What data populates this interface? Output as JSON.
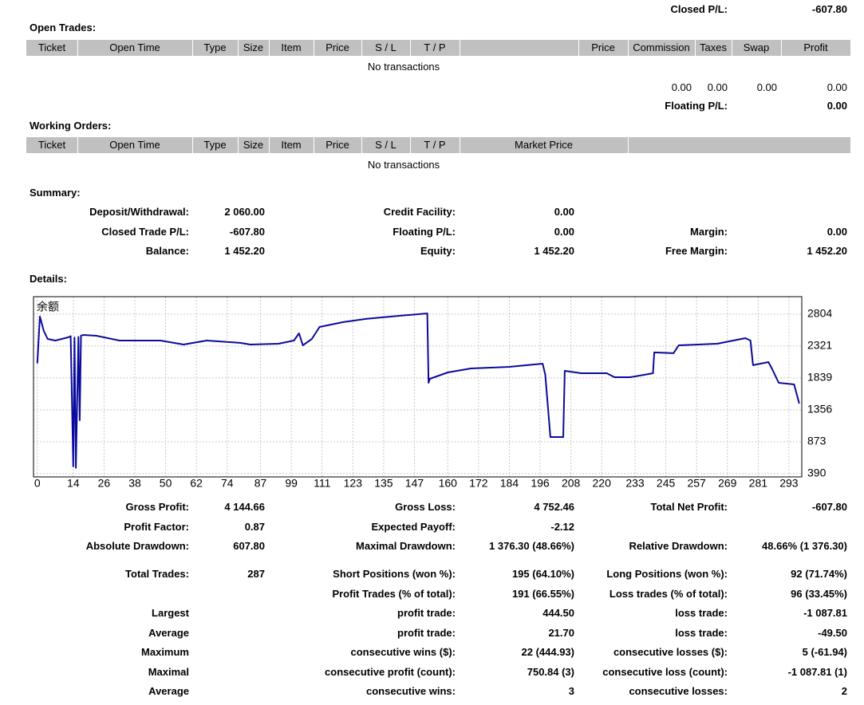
{
  "top": {
    "label": "Closed P/L:",
    "value": "-607.80"
  },
  "open_trades": {
    "title": "Open Trades:",
    "columns": [
      "Ticket",
      "Open Time",
      "Type",
      "Size",
      "Item",
      "Price",
      "S / L",
      "T / P",
      "Price",
      "Commission",
      "Taxes",
      "Swap",
      "Profit"
    ],
    "empty": "No transactions",
    "totals": [
      "0.00",
      "0.00",
      "0.00",
      "0.00"
    ],
    "floating": {
      "label": "Floating P/L:",
      "value": "0.00"
    }
  },
  "working_orders": {
    "title": "Working Orders:",
    "columns": [
      "Ticket",
      "Open Time",
      "Type",
      "Size",
      "Item",
      "Price",
      "S / L",
      "T / P",
      "Market Price"
    ],
    "empty": "No transactions"
  },
  "summary": {
    "title": "Summary:",
    "rows": [
      {
        "left": {
          "label": "Deposit/Withdrawal:",
          "value": "2 060.00"
        },
        "middle": {
          "label": "Credit Facility:",
          "value": "0.00"
        }
      },
      {
        "left": {
          "label": "Closed Trade P/L:",
          "value": "-607.80"
        },
        "middle": {
          "label": "Floating P/L:",
          "value": "0.00"
        },
        "right": {
          "label": "Margin:",
          "value": "0.00"
        }
      },
      {
        "left": {
          "label": "Balance:",
          "value": "1 452.20"
        },
        "middle": {
          "label": "Equity:",
          "value": "1 452.20"
        },
        "right": {
          "label": "Free Margin:",
          "value": "1 452.20"
        }
      }
    ]
  },
  "details": {
    "title": "Details:"
  },
  "chart_data": {
    "type": "line",
    "label": "余额",
    "color": "#0a0a9c",
    "x": [
      0,
      1,
      2.5,
      4,
      7,
      12,
      13,
      14,
      14.5,
      15,
      16,
      16.5,
      17,
      18,
      23,
      32,
      48,
      57,
      66,
      79,
      83,
      94,
      100,
      102,
      103.5,
      107,
      110,
      119,
      128,
      141,
      152,
      152.5,
      153,
      160,
      169,
      184,
      197,
      198,
      200,
      205,
      205.6,
      212,
      222,
      225,
      231,
      233,
      240,
      240.5,
      248,
      250,
      265,
      276,
      278,
      279,
      285,
      286.5,
      289,
      295,
      297
    ],
    "values": [
      2060,
      2768,
      2550,
      2430,
      2405,
      2454,
      2470,
      500,
      2450,
      480,
      2460,
      1200,
      2480,
      2490,
      2478,
      2405,
      2405,
      2345,
      2405,
      2370,
      2345,
      2357,
      2405,
      2514,
      2333,
      2430,
      2611,
      2683,
      2732,
      2780,
      2816,
      1766,
      1826,
      1923,
      1983,
      2007,
      2056,
      1887,
      945,
      945,
      1947,
      1911,
      1911,
      1850,
      1850,
      1862,
      1911,
      2225,
      2213,
      2333,
      2357,
      2442,
      2405,
      2032,
      2080,
      1971,
      1766,
      1742,
      1452
    ],
    "xlim": [
      -1.5,
      298
    ],
    "ylim": [
      342,
      3069
    ],
    "xticks": [
      0,
      14,
      26,
      38,
      50,
      62,
      74,
      87,
      99,
      111,
      123,
      135,
      147,
      160,
      172,
      184,
      196,
      208,
      220,
      233,
      245,
      257,
      269,
      281,
      293
    ],
    "yticks": [
      390,
      873,
      1356,
      1839,
      2321,
      2804
    ],
    "grid": true
  },
  "stats": {
    "rows": [
      {
        "left": {
          "label": "Gross Profit:",
          "value": "4 144.66"
        },
        "middle": {
          "label": "Gross Loss:",
          "value": "4 752.46"
        },
        "right": {
          "label": "Total Net Profit:",
          "value": "-607.80"
        }
      },
      {
        "left": {
          "label": "Profit Factor:",
          "value": "0.87"
        },
        "middle": {
          "label": "Expected Payoff:",
          "value": "-2.12"
        }
      },
      {
        "left": {
          "label": "Absolute Drawdown:",
          "value": "607.80"
        },
        "middle": {
          "label": "Maximal Drawdown:",
          "value": "1 376.30 (48.66%)"
        },
        "right": {
          "label": "Relative Drawdown:",
          "value": "48.66% (1 376.30)"
        }
      },
      {
        "left": {
          "label": "Total Trades:",
          "value": "287"
        },
        "middle": {
          "label": "Short Positions (won %):",
          "value": "195 (64.10%)"
        },
        "right": {
          "label": "Long Positions (won %):",
          "value": "92 (71.74%)"
        }
      },
      {
        "middle": {
          "label": "Profit Trades (% of total):",
          "value": "191 (66.55%)"
        },
        "right": {
          "label": "Loss trades (% of total):",
          "value": "96 (33.45%)"
        }
      },
      {
        "left": {
          "label": "Largest"
        },
        "middle": {
          "label": "profit trade:",
          "value": "444.50"
        },
        "right": {
          "label": "loss trade:",
          "value": "-1 087.81"
        }
      },
      {
        "left": {
          "label": "Average"
        },
        "middle": {
          "label": "profit trade:",
          "value": "21.70"
        },
        "right": {
          "label": "loss trade:",
          "value": "-49.50"
        }
      },
      {
        "left": {
          "label": "Maximum"
        },
        "middle": {
          "label": "consecutive wins ($):",
          "value": "22 (444.93)"
        },
        "right": {
          "label": "consecutive losses ($):",
          "value": "5 (-61.94)"
        }
      },
      {
        "left": {
          "label": "Maximal"
        },
        "middle": {
          "label": "consecutive profit (count):",
          "value": "750.84 (3)"
        },
        "right": {
          "label": "consecutive loss (count):",
          "value": "-1 087.81 (1)"
        }
      },
      {
        "left": {
          "label": "Average"
        },
        "middle": {
          "label": "consecutive wins:",
          "value": "3"
        },
        "right": {
          "label": "consecutive losses:",
          "value": "2"
        }
      }
    ]
  }
}
